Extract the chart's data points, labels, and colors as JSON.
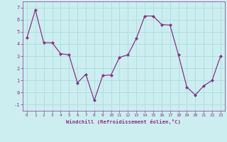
{
  "x": [
    0,
    1,
    2,
    3,
    4,
    5,
    6,
    7,
    8,
    9,
    10,
    11,
    12,
    13,
    14,
    15,
    16,
    17,
    18,
    19,
    20,
    21,
    22,
    23
  ],
  "y": [
    4.5,
    6.8,
    4.1,
    4.1,
    3.2,
    3.1,
    0.8,
    1.5,
    -0.65,
    1.4,
    1.45,
    2.9,
    3.1,
    4.45,
    6.3,
    6.3,
    5.6,
    5.55,
    3.1,
    0.45,
    -0.2,
    0.55,
    1.0,
    3.0
  ],
  "line_color": "#883388",
  "marker": "D",
  "markersize": 2.0,
  "linewidth": 0.9,
  "background_color": "#cceef0",
  "grid_color": "#aadddd",
  "tick_color": "#883388",
  "label_color": "#883388",
  "xlabel": "Windchill (Refroidissement éolien,°C)",
  "xlim": [
    -0.5,
    23.5
  ],
  "ylim": [
    -1.5,
    7.5
  ],
  "yticks": [
    -1,
    0,
    1,
    2,
    3,
    4,
    5,
    6,
    7
  ],
  "xticks": [
    0,
    1,
    2,
    3,
    4,
    5,
    6,
    7,
    8,
    9,
    10,
    11,
    12,
    13,
    14,
    15,
    16,
    17,
    18,
    19,
    20,
    21,
    22,
    23
  ]
}
